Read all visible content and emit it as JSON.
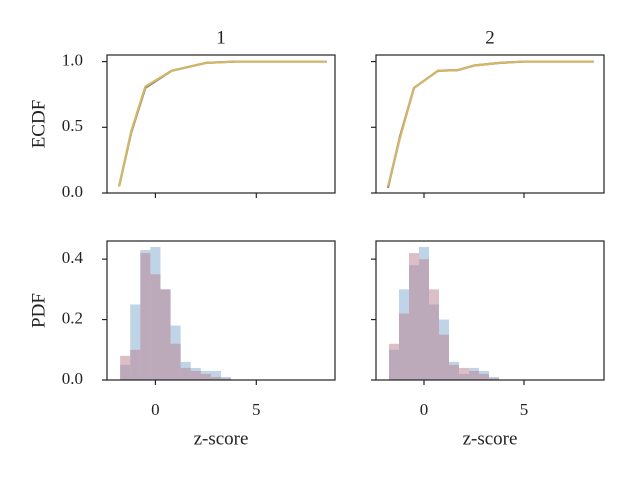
{
  "chart_data": [
    {
      "type": "line",
      "title": "1",
      "ylabel": "ECDF",
      "x": [
        -1.8,
        -1.2,
        -0.5,
        0.8,
        2.5,
        4.0,
        8.5
      ],
      "series": [
        {
          "color": "#7a7a7a",
          "values": [
            0.05,
            0.46,
            0.8,
            0.93,
            0.99,
            1.0,
            1.0
          ]
        },
        {
          "color": "#d2b767",
          "values": [
            0.05,
            0.47,
            0.81,
            0.93,
            0.99,
            1.0,
            1.0
          ]
        }
      ],
      "xlim": [
        -2.4,
        8.9
      ],
      "xticks": [
        0,
        5
      ],
      "show_xticklabels": false,
      "ylim": [
        0.0,
        1.05
      ],
      "yticks": [
        {
          "value": 0,
          "label": "0.0"
        },
        0.5,
        {
          "value": 1,
          "label": "1.0"
        }
      ],
      "show_yticklabels": true
    },
    {
      "type": "line",
      "title": "2",
      "x": [
        -1.8,
        -1.2,
        -0.5,
        0.7,
        1.7,
        2.5,
        3.8,
        5.0,
        8.5
      ],
      "series": [
        {
          "color": "#8a5a8a",
          "values": [
            0.04,
            0.43,
            0.8,
            0.93,
            0.935,
            0.97,
            0.99,
            1.0,
            1.0
          ]
        },
        {
          "color": "#d2b767",
          "values": [
            0.05,
            0.42,
            0.8,
            0.93,
            0.935,
            0.97,
            0.99,
            1.0,
            1.0
          ]
        }
      ],
      "xlim": [
        -2.4,
        9.0
      ],
      "xticks": [
        0,
        5
      ],
      "show_xticklabels": false,
      "ylim": [
        0.0,
        1.05
      ],
      "yticks": [
        0,
        0.5,
        1
      ],
      "show_yticklabels": false
    },
    {
      "type": "histogram",
      "ylabel": "PDF",
      "xlabel": "z-score",
      "bins": [
        -1.75,
        -1.25,
        -0.75,
        -0.25,
        0.25,
        0.75,
        1.25,
        1.75,
        2.25,
        2.75,
        3.25,
        3.75
      ],
      "series": [
        {
          "color": "#7fa9d0",
          "values": [
            0.05,
            0.25,
            0.43,
            0.44,
            0.3,
            0.18,
            0.06,
            0.04,
            0.03,
            0.03,
            0.01
          ]
        },
        {
          "color": "#b9808e",
          "values": [
            0.08,
            0.1,
            0.42,
            0.35,
            0.3,
            0.12,
            0.04,
            0.03,
            0.02,
            0.01,
            0.005
          ]
        }
      ],
      "xlim": [
        -2.4,
        8.9
      ],
      "xticks": [
        0,
        5
      ],
      "show_xticklabels": true,
      "ylim": [
        0.0,
        0.46
      ],
      "yticks": [
        {
          "value": 0,
          "label": "0.0"
        },
        0.2,
        0.4
      ],
      "show_yticklabels": true
    },
    {
      "type": "histogram",
      "xlabel": "z-score",
      "bins": [
        -1.75,
        -1.25,
        -0.75,
        -0.25,
        0.25,
        0.75,
        1.25,
        1.75,
        2.25,
        2.75,
        3.25,
        3.75
      ],
      "series": [
        {
          "color": "#7fa9d0",
          "values": [
            0.1,
            0.3,
            0.38,
            0.44,
            0.25,
            0.2,
            0.06,
            0.02,
            0.04,
            0.03,
            0.01
          ]
        },
        {
          "color": "#b9808e",
          "values": [
            0.12,
            0.22,
            0.42,
            0.4,
            0.3,
            0.15,
            0.05,
            0.04,
            0.03,
            0.02,
            0.005
          ]
        }
      ],
      "xlim": [
        -2.4,
        9.0
      ],
      "xticks": [
        0,
        5
      ],
      "show_xticklabels": true,
      "ylim": [
        0.0,
        0.46
      ],
      "yticks": [
        0,
        0.2,
        0.4
      ],
      "show_yticklabels": false
    }
  ]
}
